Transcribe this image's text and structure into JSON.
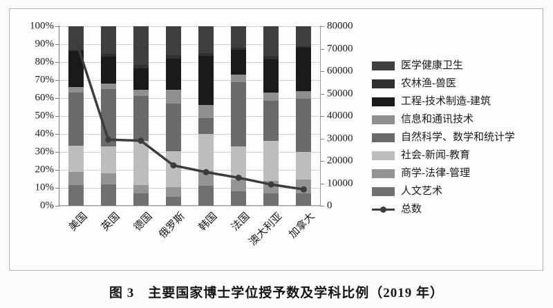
{
  "figure": {
    "caption": "图 3　主要国家博士学位授予数及学科比例（2019 年）"
  },
  "chart_data": {
    "type": "bar",
    "subtype": "100%-stacked-columns-with-total-line",
    "title": "图 3　主要国家博士学位授予数及学科比例（2019 年）",
    "categories": [
      "美国",
      "英国",
      "德国",
      "俄罗斯",
      "韩国",
      "法国",
      "澳大利亚",
      "加拿大"
    ],
    "series": [
      {
        "name": "人文艺术",
        "color": "#707070",
        "values": [
          11.5,
          12,
          7,
          5,
          11,
          8,
          7,
          7
        ]
      },
      {
        "name": "商学-法律-管理",
        "color": "#949494",
        "values": [
          7.5,
          6,
          4.5,
          5.5,
          8.5,
          6.5,
          7,
          7.5
        ]
      },
      {
        "name": "社会-新闻-教育",
        "color": "#bdbdbd",
        "values": [
          14.5,
          15,
          24.5,
          20,
          20.5,
          18.5,
          22,
          15.5
        ]
      },
      {
        "name": "自然科学、数学和统计学",
        "color": "#6a6a6a",
        "values": [
          29.5,
          32,
          25,
          26.5,
          9,
          36,
          22.5,
          29.5
        ]
      },
      {
        "name": "信息和通讯技术",
        "color": "#8f8f8f",
        "values": [
          3,
          3,
          3.5,
          7.5,
          7,
          4,
          4.5,
          4.5
        ]
      },
      {
        "name": "工程-技术制造-建筑",
        "color": "#1a1a1a",
        "values": [
          20,
          15,
          12,
          17.5,
          27.5,
          14,
          18.5,
          24
        ]
      },
      {
        "name": "农林渔-兽医",
        "color": "#303030",
        "values": [
          1,
          1.5,
          2,
          2,
          1.5,
          1,
          2,
          1
        ]
      },
      {
        "name": "医学健康卫生",
        "color": "#3f3f3f",
        "values": [
          13,
          15.5,
          21.5,
          16,
          15,
          12,
          16.5,
          11
        ]
      }
    ],
    "line_series": {
      "name": "总数",
      "color": "#3c3c3c",
      "values": [
        74000,
        29500,
        29000,
        18000,
        15000,
        12500,
        9500,
        7300
      ]
    },
    "left_axis": {
      "min": 0,
      "max": 100,
      "unit": "%",
      "tick_labels": [
        "0%",
        "10%",
        "20%",
        "30%",
        "40%",
        "50%",
        "60%",
        "70%",
        "80%",
        "90%",
        "100%"
      ]
    },
    "right_axis": {
      "min": 0,
      "max": 80000,
      "tick_labels": [
        "0",
        "10000",
        "20000",
        "30000",
        "40000",
        "50000",
        "60000",
        "70000",
        "80000"
      ]
    },
    "legend_position": "right",
    "legend_order_top_to_bottom": [
      "医学健康卫生",
      "农林渔-兽医",
      "工程-技术制造-建筑",
      "信息和通讯技术",
      "自然科学、数学和统计学",
      "社会-新闻-教育",
      "商学-法律-管理",
      "人文艺术",
      "总数"
    ],
    "grid": true
  }
}
